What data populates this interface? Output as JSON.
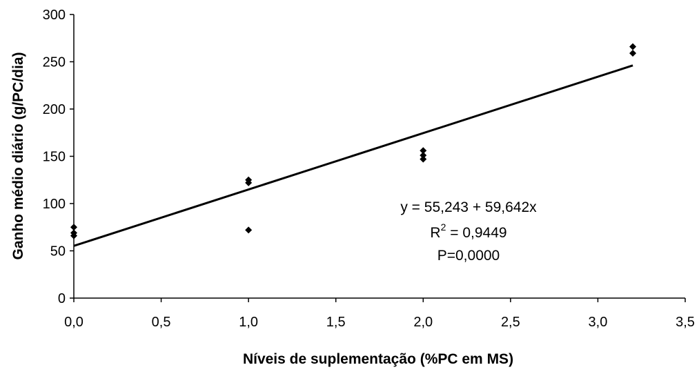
{
  "chart_data": {
    "type": "scatter",
    "title": "",
    "xlabel": "Níveis de suplementação (%PC em MS)",
    "ylabel": "Ganho médio diário (g/PC/dia)",
    "xlim": [
      0,
      3.5
    ],
    "ylim": [
      0,
      300
    ],
    "x_ticks": [
      "0,0",
      "0,5",
      "1,0",
      "1,5",
      "2,0",
      "2,5",
      "3,0",
      "3,5"
    ],
    "y_ticks": [
      "0",
      "50",
      "100",
      "150",
      "200",
      "250",
      "300"
    ],
    "grid": false,
    "legend": "none",
    "series": [
      {
        "marker": "diamond",
        "color": "#000000",
        "points": [
          {
            "x": 0.0,
            "y": 75
          },
          {
            "x": 0.0,
            "y": 69
          },
          {
            "x": 0.0,
            "y": 66
          },
          {
            "x": 1.0,
            "y": 125
          },
          {
            "x": 1.0,
            "y": 122
          },
          {
            "x": 1.0,
            "y": 72
          },
          {
            "x": 2.0,
            "y": 156
          },
          {
            "x": 2.0,
            "y": 151
          },
          {
            "x": 2.0,
            "y": 147
          },
          {
            "x": 3.2,
            "y": 266
          },
          {
            "x": 3.2,
            "y": 259
          }
        ]
      }
    ],
    "trendline": {
      "intercept": 55.243,
      "slope": 59.642,
      "x_range": [
        0,
        3.2
      ],
      "color": "#000000"
    },
    "annotations": {
      "equation": "y = 55,243 + 59,642x",
      "r2_prefix": "R",
      "r2_sup": "2",
      "r2_value": " = 0,9449",
      "p_value": "P=0,0000"
    }
  }
}
